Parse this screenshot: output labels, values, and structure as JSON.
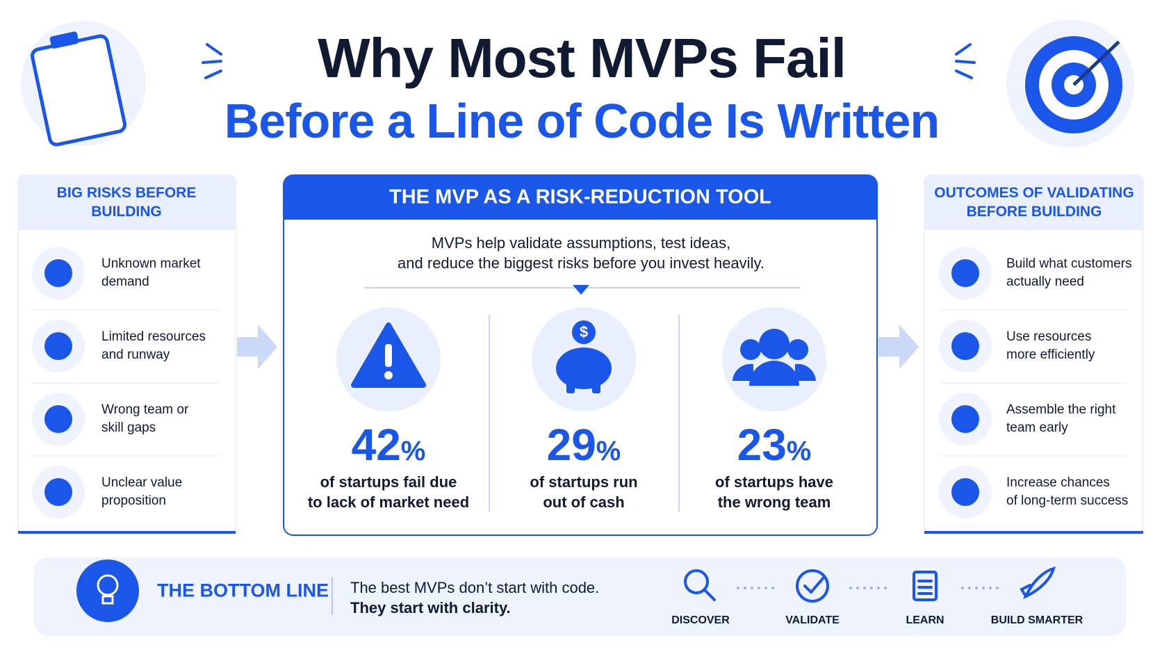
{
  "header": {
    "title_line1": "Why Most MVPs Fail",
    "title_line2": "Before a Line of Code Is Written"
  },
  "left_panel": {
    "title": [
      "BIG RISKS BEFORE",
      "BUILDING"
    ],
    "items": [
      [
        "Unknown market",
        "demand"
      ],
      [
        "Limited resources",
        "and runway"
      ],
      [
        "Wrong team or",
        "skill gaps"
      ],
      [
        "Unclear value",
        "proposition"
      ]
    ]
  },
  "center_panel": {
    "title": "THE MVP AS A RISK-REDUCTION TOOL",
    "intro": [
      "MVPs help validate assumptions, test ideas,",
      "and reduce the biggest risks before you invest heavily."
    ],
    "stats": [
      {
        "number": "42",
        "unit": "%",
        "text": [
          "of startups fail due",
          "to lack of market need"
        ]
      },
      {
        "number": "29",
        "unit": "%",
        "text": [
          "of startups run",
          "out of cash"
        ]
      },
      {
        "number": "23",
        "unit": "%",
        "text": [
          "of startups have",
          "the wrong team"
        ]
      }
    ]
  },
  "right_panel": {
    "title": [
      "OUTCOMES OF VALIDATING",
      "BEFORE BUILDING"
    ],
    "items": [
      [
        "Build what customers",
        "actually need"
      ],
      [
        "Use resources",
        "more efficiently"
      ],
      [
        "Assemble the right",
        "team early"
      ],
      [
        "Increase chances",
        "of long-term success"
      ]
    ]
  },
  "bottom": {
    "label": "THE BOTTOM LINE",
    "message": [
      "The best MVPs don’t start with code.",
      "They start with clarity."
    ],
    "steps": [
      "DISCOVER",
      "VALIDATE",
      "LEARN",
      "BUILD SMARTER"
    ]
  }
}
